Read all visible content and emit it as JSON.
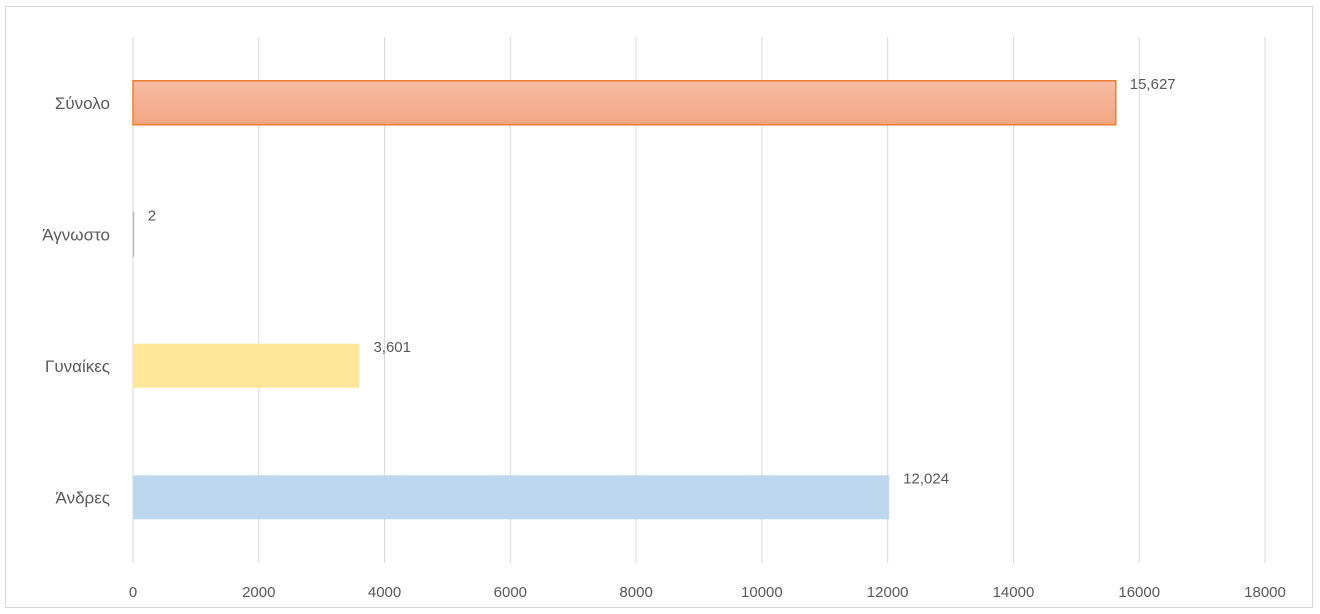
{
  "chart_data": {
    "type": "bar",
    "orientation": "horizontal",
    "categories": [
      "Άνδρες",
      "Γυναίκες",
      "Άγνωστο",
      "Σύνολο"
    ],
    "values": [
      12024,
      3601,
      2,
      15627
    ],
    "data_labels": [
      "12,024",
      "3,601",
      "2",
      "15,627"
    ],
    "colors": [
      "#bdd7ee",
      "#ffe699",
      "#d9d9d9",
      "#f4b183"
    ],
    "xlim": [
      0,
      18000
    ],
    "x_ticks": [
      0,
      2000,
      4000,
      6000,
      8000,
      10000,
      12000,
      14000,
      16000,
      18000
    ],
    "x_tick_labels": [
      "0",
      "2000",
      "4000",
      "6000",
      "8000",
      "10000",
      "12000",
      "14000",
      "16000",
      "18000"
    ],
    "grid": "vertical",
    "legend": "none",
    "title": "",
    "xlabel": "",
    "ylabel": ""
  }
}
